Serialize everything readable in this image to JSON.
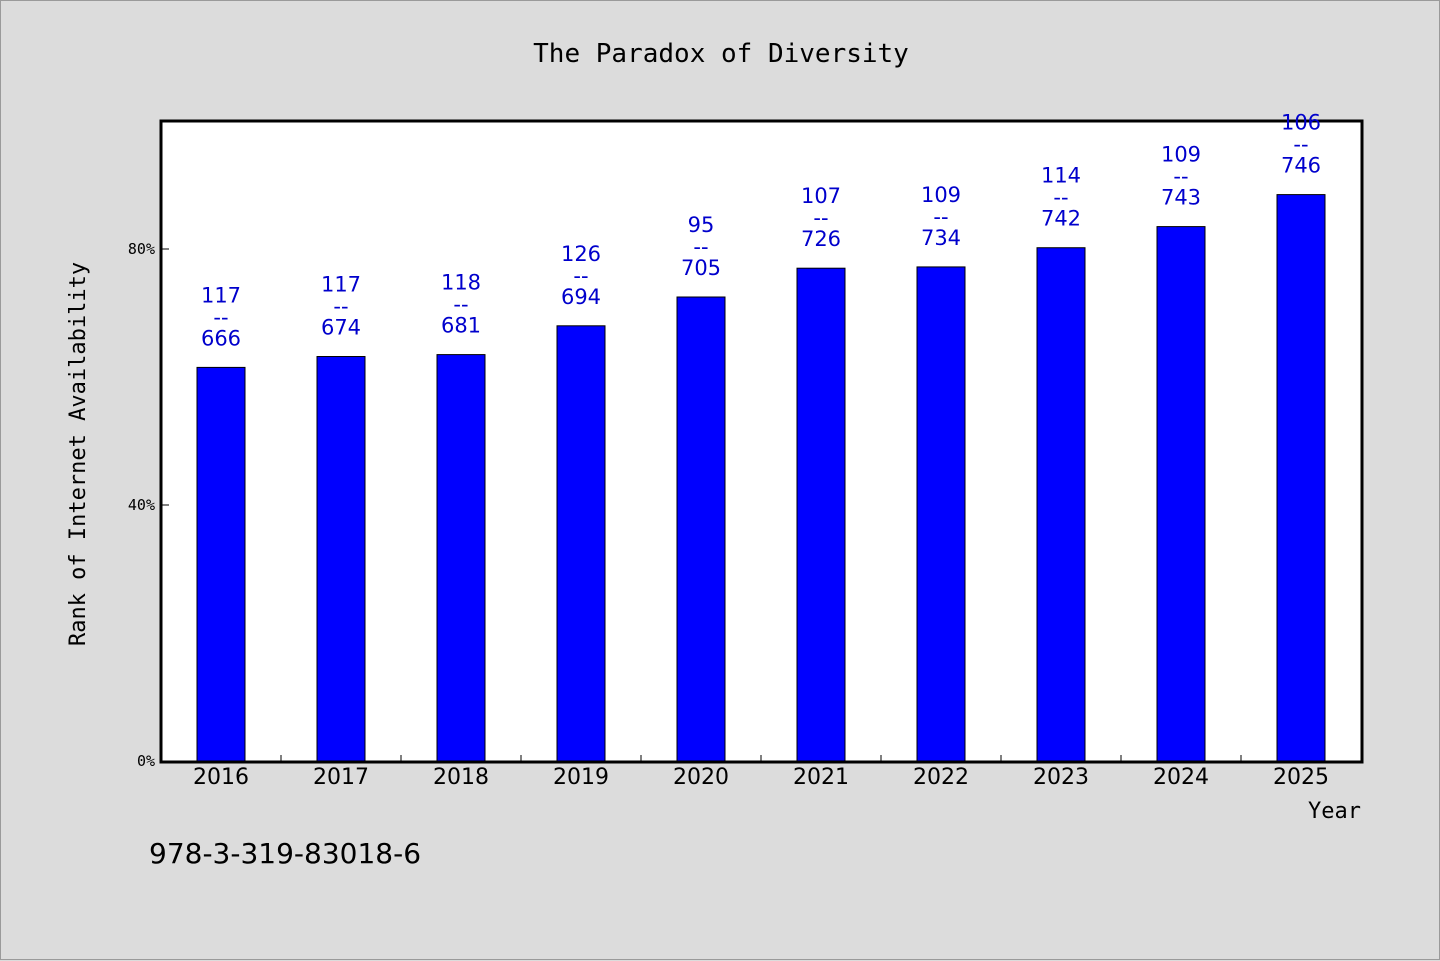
{
  "colors": {
    "background": "#dcdcdc",
    "plot_background": "#ffffff",
    "bar": "#0000ff",
    "data_label": "#0000cc"
  },
  "footer": {
    "isbn": "978-3-319-83018-6"
  },
  "chart_data": {
    "type": "bar",
    "title": "The Paradox of Diversity",
    "xlabel": "Year",
    "ylabel": "Rank of Internet Availability",
    "categories": [
      "2016",
      "2017",
      "2018",
      "2019",
      "2020",
      "2021",
      "2022",
      "2023",
      "2024",
      "2025"
    ],
    "values": [
      61.5,
      63.2,
      63.5,
      68.0,
      72.5,
      77.0,
      77.2,
      80.2,
      83.5,
      88.5
    ],
    "bar_labels": [
      {
        "top": "117",
        "sep": "--",
        "bottom": "666"
      },
      {
        "top": "117",
        "sep": "--",
        "bottom": "674"
      },
      {
        "top": "118",
        "sep": "--",
        "bottom": "681"
      },
      {
        "top": "126",
        "sep": "--",
        "bottom": "694"
      },
      {
        "top": "95",
        "sep": "--",
        "bottom": "705"
      },
      {
        "top": "107",
        "sep": "--",
        "bottom": "726"
      },
      {
        "top": "109",
        "sep": "--",
        "bottom": "734"
      },
      {
        "top": "114",
        "sep": "--",
        "bottom": "742"
      },
      {
        "top": "109",
        "sep": "--",
        "bottom": "743"
      },
      {
        "top": "106",
        "sep": "--",
        "bottom": "746"
      }
    ],
    "ylim": [
      0,
      100
    ],
    "yticks": [
      {
        "value": 0,
        "label": "0%"
      },
      {
        "value": 40,
        "label": "40%"
      },
      {
        "value": 80,
        "label": "80%"
      }
    ],
    "grid": false,
    "legend": "none"
  }
}
